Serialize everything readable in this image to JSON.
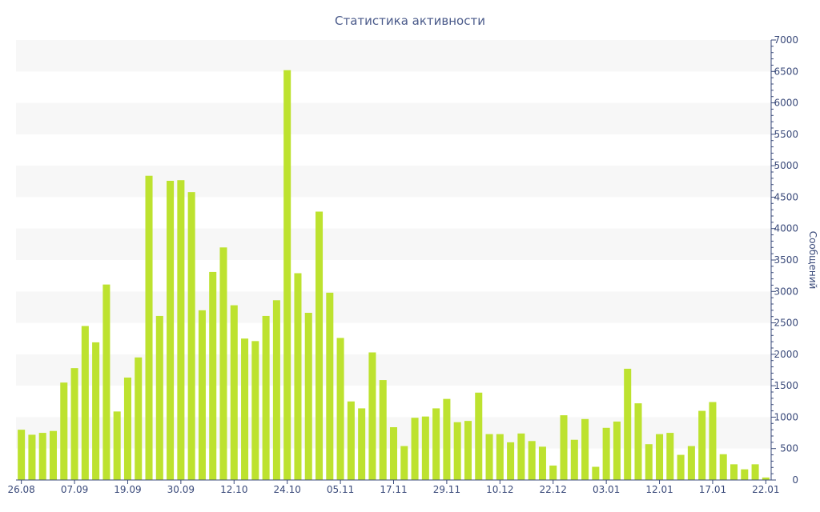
{
  "chart_data": {
    "type": "bar",
    "title": "Статистика активности",
    "xlabel": "",
    "ylabel": "Сообщений",
    "y_axis_position": "right",
    "ylim": [
      0,
      7000
    ],
    "yticks": [
      0,
      500,
      1000,
      1500,
      2000,
      2500,
      3000,
      3500,
      4000,
      4500,
      5000,
      5500,
      6000,
      6500,
      7000
    ],
    "grid": "alternating-bands",
    "colors": {
      "bar": "#bde22f",
      "band": "#f7f7f7",
      "axis": "#3a4a7a",
      "title": "#4a5a8a"
    },
    "x_ticks": [
      {
        "label": "26.08",
        "index": 0
      },
      {
        "label": "07.09",
        "index": 5
      },
      {
        "label": "19.09",
        "index": 10
      },
      {
        "label": "30.09",
        "index": 15
      },
      {
        "label": "12.10",
        "index": 20
      },
      {
        "label": "24.10",
        "index": 25
      },
      {
        "label": "05.11",
        "index": 30
      },
      {
        "label": "17.11",
        "index": 35
      },
      {
        "label": "29.11",
        "index": 40
      },
      {
        "label": "10.12",
        "index": 45
      },
      {
        "label": "22.12",
        "index": 50
      },
      {
        "label": "03.01",
        "index": 55
      },
      {
        "label": "12.01",
        "index": 60
      },
      {
        "label": "17.01",
        "index": 65
      },
      {
        "label": "22.01",
        "index": 70
      }
    ],
    "values": [
      800,
      720,
      750,
      780,
      1550,
      1780,
      2450,
      2190,
      3110,
      1090,
      1630,
      1950,
      4840,
      2610,
      4760,
      4770,
      4580,
      2700,
      3310,
      3700,
      2780,
      2250,
      2210,
      2610,
      2860,
      6520,
      3290,
      2660,
      4270,
      2980,
      2260,
      1250,
      1140,
      2030,
      1590,
      840,
      540,
      990,
      1010,
      1140,
      1290,
      920,
      940,
      1390,
      730,
      730,
      600,
      740,
      620,
      530,
      230,
      1030,
      640,
      970,
      210,
      830,
      930,
      1770,
      1220,
      570,
      730,
      750,
      400,
      540,
      1100,
      1240,
      410,
      250,
      170,
      250,
      40
    ]
  }
}
